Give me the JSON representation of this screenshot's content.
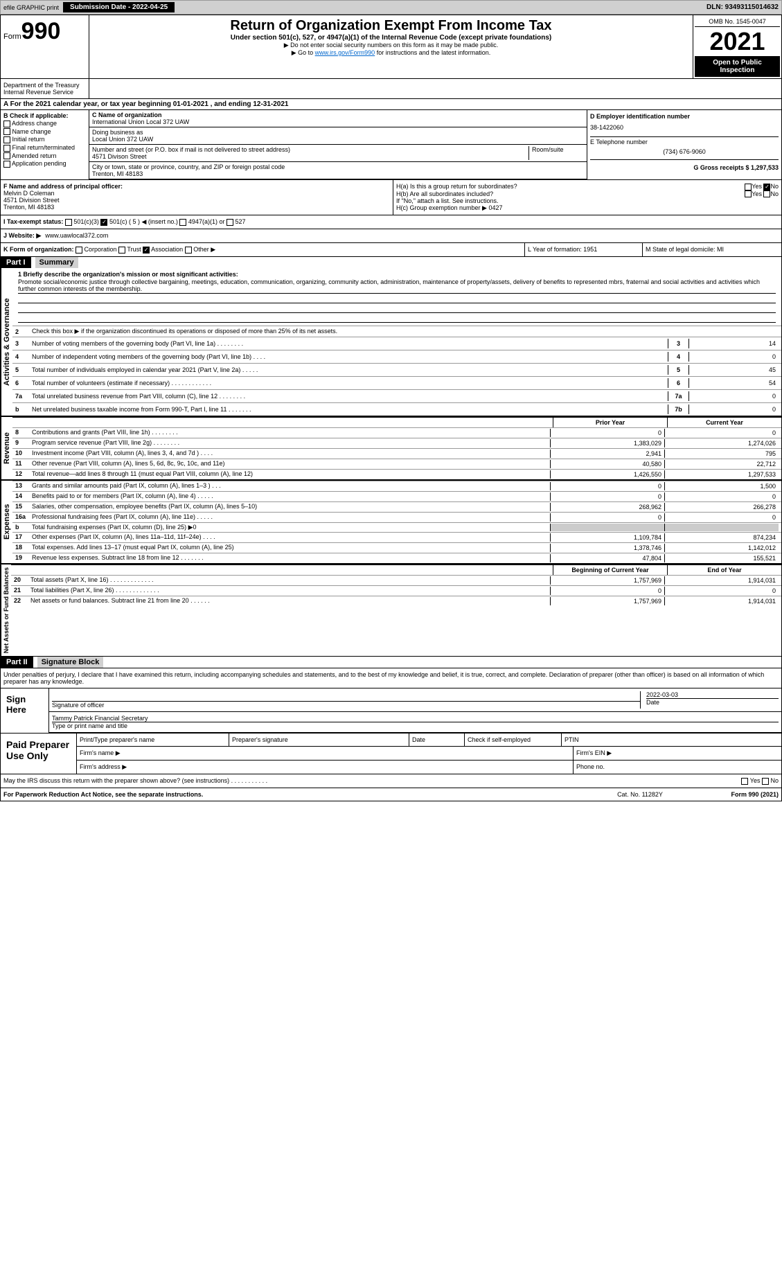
{
  "topbar": {
    "efile": "efile GRAPHIC print",
    "submission": "Submission Date - 2022-04-25",
    "dln": "DLN: 93493115014632"
  },
  "header": {
    "form_word": "Form",
    "form_num": "990",
    "title": "Return of Organization Exempt From Income Tax",
    "subtitle": "Under section 501(c), 527, or 4947(a)(1) of the Internal Revenue Code (except private foundations)",
    "ssn_note": "▶ Do not enter social security numbers on this form as it may be made public.",
    "goto": "▶ Go to ",
    "goto_link": "www.irs.gov/Form990",
    "goto_rest": " for instructions and the latest information.",
    "omb": "OMB No. 1545-0047",
    "year": "2021",
    "pub": "Open to Public Inspection",
    "dept": "Department of the Treasury",
    "irs": "Internal Revenue Service"
  },
  "a_row": "A For the 2021 calendar year, or tax year beginning 01-01-2021     , and ending 12-31-2021",
  "section_b": {
    "label": "B Check if applicable:",
    "addr": "Address change",
    "name": "Name change",
    "init": "Initial return",
    "final": "Final return/terminated",
    "amend": "Amended return",
    "app": "Application pending"
  },
  "section_c": {
    "label": "C Name of organization",
    "name": "International Union Local 372 UAW",
    "dba_label": "Doing business as",
    "dba": "Local Union 372 UAW",
    "addr_label": "Number and street (or P.O. box if mail is not delivered to street address)",
    "room_label": "Room/suite",
    "addr": "4571 Divison Street",
    "city_label": "City or town, state or province, country, and ZIP or foreign postal code",
    "city": "Trenton, MI   48183"
  },
  "section_d": {
    "label": "D Employer identification number",
    "ein": "38-1422060"
  },
  "section_e": {
    "label": "E Telephone number",
    "phone": "(734) 676-9060"
  },
  "section_g": {
    "label": "G Gross receipts $ 1,297,533"
  },
  "section_f": {
    "label": "F  Name and address of principal officer:",
    "name": "Melvin D Coleman",
    "addr": "4571 Division Street",
    "city": "Trenton, MI   48183"
  },
  "section_h": {
    "ha": "H(a)  Is this a group return for subordinates?",
    "hb": "H(b)  Are all subordinates included?",
    "hb_note": "If \"No,\" attach a list. See instructions.",
    "hc": "H(c)  Group exemption number ▶",
    "hc_val": "0427",
    "yes": "Yes",
    "no": "No"
  },
  "section_i": {
    "label": "I   Tax-exempt status:",
    "c3": "501(c)(3)",
    "c": "501(c) ( 5 ) ◀ (insert no.)",
    "a1": "4947(a)(1) or",
    "527": "527"
  },
  "section_j": {
    "label": "J   Website: ▶",
    "url": "www.uawlocal372.com"
  },
  "section_k": {
    "label": "K Form of organization:",
    "corp": "Corporation",
    "trust": "Trust",
    "assoc": "Association",
    "other": "Other ▶"
  },
  "section_l": {
    "label": "L Year of formation: 1951"
  },
  "section_m": {
    "label": "M State of legal domicile: MI"
  },
  "part1": {
    "part": "Part I",
    "title": "Summary",
    "side1": "Activities & Governance",
    "side2": "Revenue",
    "side3": "Expenses",
    "side4": "Net Assets or Fund Balances",
    "q1": "1  Briefly describe the organization's mission or most significant activities:",
    "mission": "Promote social/economic justice through collective bargaining, meetings, education, communication, organizing, community action, administration, maintenance of property/assets, delivery of benefits to represented mbrs, fraternal and social activities and activities which further common interests of the membership.",
    "q2": "Check this box ▶         if the organization discontinued its operations or disposed of more than 25% of its net assets.",
    "lines": [
      {
        "n": "3",
        "t": "Number of voting members of the governing body (Part VI, line 1a)   .    .    .    .    .    .    .    .",
        "b": "3",
        "v": "14"
      },
      {
        "n": "4",
        "t": "Number of independent voting members of the governing body (Part VI, line 1b)   .    .    .    .",
        "b": "4",
        "v": "0"
      },
      {
        "n": "5",
        "t": "Total number of individuals employed in calendar year 2021 (Part V, line 2a)   .    .    .    .    .",
        "b": "5",
        "v": "45"
      },
      {
        "n": "6",
        "t": "Total number of volunteers (estimate if necessary)   .    .    .    .    .    .    .    .    .    .    .    .",
        "b": "6",
        "v": "54"
      },
      {
        "n": "7a",
        "t": "Total unrelated business revenue from Part VIII, column (C), line 12   .    .    .    .    .    .    .    .",
        "b": "7a",
        "v": "0"
      },
      {
        "n": "b",
        "t": "Net unrelated business taxable income from Form 990-T, Part I, line 11   .    .    .    .    .    .    .",
        "b": "7b",
        "v": "0"
      }
    ],
    "prior_hdr": "Prior Year",
    "curr_hdr": "Current Year",
    "rev": [
      {
        "n": "8",
        "t": "Contributions and grants (Part VIII, line 1h)   .    .    .    .    .    .    .    .",
        "p": "0",
        "c": "0"
      },
      {
        "n": "9",
        "t": "Program service revenue (Part VIII, line 2g)   .    .    .    .    .    .    .    .",
        "p": "1,383,029",
        "c": "1,274,026"
      },
      {
        "n": "10",
        "t": "Investment income (Part VIII, column (A), lines 3, 4, and 7d )   .    .    .    .",
        "p": "2,941",
        "c": "795"
      },
      {
        "n": "11",
        "t": "Other revenue (Part VIII, column (A), lines 5, 6d, 8c, 9c, 10c, and 11e)",
        "p": "40,580",
        "c": "22,712"
      },
      {
        "n": "12",
        "t": "Total revenue—add lines 8 through 11 (must equal Part VIII, column (A), line 12)",
        "p": "1,426,550",
        "c": "1,297,533"
      }
    ],
    "exp": [
      {
        "n": "13",
        "t": "Grants and similar amounts paid (Part IX, column (A), lines 1–3 )   .    .    .",
        "p": "0",
        "c": "1,500"
      },
      {
        "n": "14",
        "t": "Benefits paid to or for members (Part IX, column (A), line 4)   .    .    .    .    .",
        "p": "0",
        "c": "0"
      },
      {
        "n": "15",
        "t": "Salaries, other compensation, employee benefits (Part IX, column (A), lines 5–10)",
        "p": "268,962",
        "c": "266,278"
      },
      {
        "n": "16a",
        "t": "Professional fundraising fees (Part IX, column (A), line 11e)   .    .    .    .    .",
        "p": "0",
        "c": "0"
      },
      {
        "n": "b",
        "t": "Total fundraising expenses (Part IX, column (D), line 25) ▶0",
        "p": "",
        "c": "",
        "gray": true
      },
      {
        "n": "17",
        "t": "Other expenses (Part IX, column (A), lines 11a–11d, 11f–24e)   .    .    .    .",
        "p": "1,109,784",
        "c": "874,234"
      },
      {
        "n": "18",
        "t": "Total expenses. Add lines 13–17 (must equal Part IX, column (A), line 25)",
        "p": "1,378,746",
        "c": "1,142,012"
      },
      {
        "n": "19",
        "t": "Revenue less expenses. Subtract line 18 from line 12   .    .    .    .    .    .    .",
        "p": "47,804",
        "c": "155,521"
      }
    ],
    "begin_hdr": "Beginning of Current Year",
    "end_hdr": "End of Year",
    "net": [
      {
        "n": "20",
        "t": "Total assets (Part X, line 16)   .    .    .    .    .    .    .    .    .    .    .    .    .",
        "p": "1,757,969",
        "c": "1,914,031"
      },
      {
        "n": "21",
        "t": "Total liabilities (Part X, line 26)   .    .    .    .    .    .    .    .    .    .    .    .    .",
        "p": "0",
        "c": "0"
      },
      {
        "n": "22",
        "t": "Net assets or fund balances. Subtract line 21 from line 20   .    .    .    .    .    .",
        "p": "1,757,969",
        "c": "1,914,031"
      }
    ]
  },
  "part2": {
    "part": "Part II",
    "title": "Signature Block",
    "decl": "Under penalties of perjury, I declare that I have examined this return, including accompanying schedules and statements, and to the best of my knowledge and belief, it is true, correct, and complete. Declaration of preparer (other than officer) is based on all information of which preparer has any knowledge.",
    "sign_here": "Sign Here",
    "sig_officer": "Signature of officer",
    "date": "Date",
    "sig_date_val": "2022-03-03",
    "name": "Tammy Patrick  Financial Secretary",
    "name_label": "Type or print name and title",
    "paid": "Paid Preparer Use Only",
    "prep_name": "Print/Type preparer's name",
    "prep_sig": "Preparer's signature",
    "prep_date": "Date",
    "check_self": "Check          if self-employed",
    "ptin": "PTIN",
    "firm_name": "Firm's name   ▶",
    "firm_ein": "Firm's EIN ▶",
    "firm_addr": "Firm's address ▶",
    "phone": "Phone no.",
    "may_irs": "May the IRS discuss this return with the preparer shown above? (see instructions)   .    .    .    .    .    .    .    .    .    .    .",
    "yes": "Yes",
    "no": "No"
  },
  "footer": {
    "left": "For Paperwork Reduction Act Notice, see the separate instructions.",
    "mid": "Cat. No. 11282Y",
    "right": "Form 990 (2021)"
  }
}
